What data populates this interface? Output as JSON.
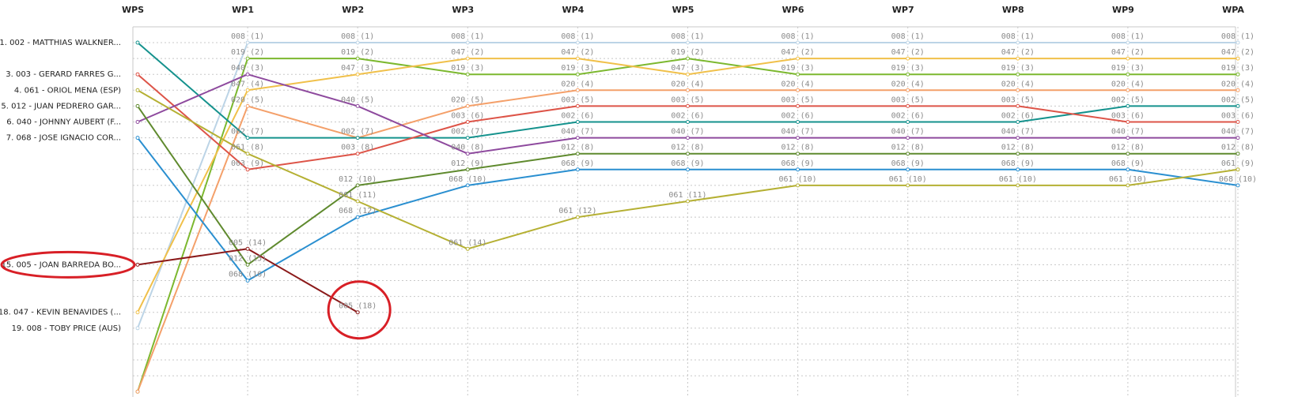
{
  "chart_data": {
    "type": "line",
    "x": [
      "WPS",
      "WP1",
      "WP2",
      "WP3",
      "WP4",
      "WP5",
      "WP6",
      "WP7",
      "WP8",
      "WP9",
      "WPA"
    ],
    "y_scale": "rank (1 at top)",
    "ylim": [
      1,
      22
    ],
    "grid": true,
    "rider_labels": [
      {
        "rank": 1,
        "text": "1. 002 - MATTHIAS WALKNER..."
      },
      {
        "rank": 3,
        "text": "3. 003 - GERARD FARRES G..."
      },
      {
        "rank": 4,
        "text": "4. 061 - ORIOL MENA (ESP)"
      },
      {
        "rank": 5,
        "text": "5. 012 - JUAN PEDRERO GAR..."
      },
      {
        "rank": 6,
        "text": "6. 040 - JOHNNY AUBERT (F..."
      },
      {
        "rank": 7,
        "text": "7. 068 - JOSE IGNACIO COR..."
      },
      {
        "rank": 15,
        "text": "15. 005 - JOAN BARREDA BO..."
      },
      {
        "rank": 18,
        "text": "18. 047 - KEVIN BENAVIDES (..."
      },
      {
        "rank": 19,
        "text": "19. 008 - TOBY PRICE (AUS)"
      }
    ],
    "series": [
      {
        "id": "008",
        "color": "#bcd4e6",
        "ranks": [
          19,
          1,
          1,
          1,
          1,
          1,
          1,
          1,
          1,
          1,
          1
        ]
      },
      {
        "id": "019",
        "color": "#7cb82f",
        "ranks": [
          23,
          2,
          2,
          3,
          3,
          2,
          3,
          3,
          3,
          3,
          3
        ]
      },
      {
        "id": "047",
        "color": "#f0c04a",
        "ranks": [
          18,
          4,
          3,
          2,
          2,
          3,
          2,
          2,
          2,
          2,
          2
        ]
      },
      {
        "id": "020",
        "color": "#f4a06a",
        "ranks": [
          23,
          5,
          7,
          5,
          4,
          4,
          4,
          4,
          4,
          4,
          4
        ]
      },
      {
        "id": "002",
        "color": "#15928d",
        "ranks": [
          1,
          7,
          7,
          7,
          6,
          6,
          6,
          6,
          6,
          5,
          5
        ]
      },
      {
        "id": "003",
        "color": "#dd5448",
        "ranks": [
          3,
          9,
          8,
          6,
          5,
          5,
          5,
          5,
          5,
          6,
          6
        ]
      },
      {
        "id": "040",
        "color": "#8e4a9e",
        "ranks": [
          6,
          3,
          5,
          8,
          7,
          7,
          7,
          7,
          7,
          7,
          7
        ]
      },
      {
        "id": "012",
        "color": "#5f8a2e",
        "ranks": [
          5,
          15,
          10,
          9,
          8,
          8,
          8,
          8,
          8,
          8,
          8
        ]
      },
      {
        "id": "068",
        "color": "#2a8fd0",
        "ranks": [
          7,
          16,
          12,
          10,
          9,
          9,
          9,
          9,
          9,
          9,
          10
        ]
      },
      {
        "id": "061",
        "color": "#b5b033",
        "ranks": [
          4,
          8,
          11,
          14,
          12,
          11,
          10,
          10,
          10,
          10,
          9
        ]
      },
      {
        "id": "005",
        "color": "#8b1a1a",
        "ranks": [
          15,
          14,
          18
        ]
      }
    ],
    "point_labels": [
      {
        "s": "008",
        "i": 1,
        "text": "008 (1)"
      },
      {
        "s": "008",
        "i": 2,
        "text": "008 (1)"
      },
      {
        "s": "008",
        "i": 3,
        "text": "008 (1)"
      },
      {
        "s": "008",
        "i": 4,
        "text": "008 (1)"
      },
      {
        "s": "008",
        "i": 5,
        "text": "008 (1)"
      },
      {
        "s": "008",
        "i": 6,
        "text": "008 (1)"
      },
      {
        "s": "008",
        "i": 7,
        "text": "008 (1)"
      },
      {
        "s": "008",
        "i": 8,
        "text": "008 (1)"
      },
      {
        "s": "008",
        "i": 9,
        "text": "008 (1)"
      },
      {
        "s": "008",
        "i": 10,
        "text": "008 (1)"
      },
      {
        "s": "019",
        "i": 1,
        "text": "019 (2)"
      },
      {
        "s": "019",
        "i": 2,
        "text": "019 (2)"
      },
      {
        "s": "019",
        "i": 3,
        "text": "019 (3)"
      },
      {
        "s": "019",
        "i": 4,
        "text": "019 (3)"
      },
      {
        "s": "019",
        "i": 5,
        "text": "019 (2)"
      },
      {
        "s": "019",
        "i": 6,
        "text": "019 (3)"
      },
      {
        "s": "019",
        "i": 7,
        "text": "019 (3)"
      },
      {
        "s": "019",
        "i": 8,
        "text": "019 (3)"
      },
      {
        "s": "019",
        "i": 9,
        "text": "019 (3)"
      },
      {
        "s": "019",
        "i": 10,
        "text": "019 (3)"
      },
      {
        "s": "047",
        "i": 1,
        "text": "047 (4)"
      },
      {
        "s": "047",
        "i": 2,
        "text": "047 (3)"
      },
      {
        "s": "047",
        "i": 3,
        "text": "047 (2)"
      },
      {
        "s": "047",
        "i": 4,
        "text": "047 (2)"
      },
      {
        "s": "047",
        "i": 5,
        "text": "047 (3)"
      },
      {
        "s": "047",
        "i": 6,
        "text": "047 (2)"
      },
      {
        "s": "047",
        "i": 7,
        "text": "047 (2)"
      },
      {
        "s": "047",
        "i": 8,
        "text": "047 (2)"
      },
      {
        "s": "047",
        "i": 9,
        "text": "047 (2)"
      },
      {
        "s": "047",
        "i": 10,
        "text": "047 (2)"
      },
      {
        "s": "020",
        "i": 1,
        "text": "020 (5)"
      },
      {
        "s": "020",
        "i": 3,
        "text": "020 (5)"
      },
      {
        "s": "020",
        "i": 4,
        "text": "020 (4)"
      },
      {
        "s": "020",
        "i": 5,
        "text": "020 (4)"
      },
      {
        "s": "020",
        "i": 6,
        "text": "020 (4)"
      },
      {
        "s": "020",
        "i": 7,
        "text": "020 (4)"
      },
      {
        "s": "020",
        "i": 8,
        "text": "020 (4)"
      },
      {
        "s": "020",
        "i": 9,
        "text": "020 (4)"
      },
      {
        "s": "020",
        "i": 10,
        "text": "020 (4)"
      },
      {
        "s": "002",
        "i": 1,
        "text": "002 (7)"
      },
      {
        "s": "002",
        "i": 2,
        "text": "002 (7)"
      },
      {
        "s": "002",
        "i": 3,
        "text": "002 (7)"
      },
      {
        "s": "002",
        "i": 4,
        "text": "002 (6)"
      },
      {
        "s": "002",
        "i": 5,
        "text": "002 (6)"
      },
      {
        "s": "002",
        "i": 6,
        "text": "002 (6)"
      },
      {
        "s": "002",
        "i": 7,
        "text": "002 (6)"
      },
      {
        "s": "002",
        "i": 8,
        "text": "002 (6)"
      },
      {
        "s": "002",
        "i": 9,
        "text": "002 (5)"
      },
      {
        "s": "002",
        "i": 10,
        "text": "002 (5)"
      },
      {
        "s": "003",
        "i": 1,
        "text": "003 (9)"
      },
      {
        "s": "003",
        "i": 2,
        "text": "003 (8)"
      },
      {
        "s": "003",
        "i": 3,
        "text": "003 (6)"
      },
      {
        "s": "003",
        "i": 4,
        "text": "003 (5)"
      },
      {
        "s": "003",
        "i": 5,
        "text": "003 (5)"
      },
      {
        "s": "003",
        "i": 6,
        "text": "003 (5)"
      },
      {
        "s": "003",
        "i": 7,
        "text": "003 (5)"
      },
      {
        "s": "003",
        "i": 8,
        "text": "003 (5)"
      },
      {
        "s": "003",
        "i": 9,
        "text": "003 (6)"
      },
      {
        "s": "003",
        "i": 10,
        "text": "003 (6)"
      },
      {
        "s": "040",
        "i": 1,
        "text": "040 (3)"
      },
      {
        "s": "040",
        "i": 2,
        "text": "040 (5)"
      },
      {
        "s": "040",
        "i": 3,
        "text": "040 (8)"
      },
      {
        "s": "040",
        "i": 4,
        "text": "040 (7)"
      },
      {
        "s": "040",
        "i": 5,
        "text": "040 (7)"
      },
      {
        "s": "040",
        "i": 6,
        "text": "040 (7)"
      },
      {
        "s": "040",
        "i": 7,
        "text": "040 (7)"
      },
      {
        "s": "040",
        "i": 8,
        "text": "040 (7)"
      },
      {
        "s": "040",
        "i": 9,
        "text": "040 (7)"
      },
      {
        "s": "040",
        "i": 10,
        "text": "040 (7)"
      },
      {
        "s": "012",
        "i": 1,
        "text": "012 (15)"
      },
      {
        "s": "012",
        "i": 2,
        "text": "012 (10)"
      },
      {
        "s": "012",
        "i": 3,
        "text": "012 (9)"
      },
      {
        "s": "012",
        "i": 4,
        "text": "012 (8)"
      },
      {
        "s": "012",
        "i": 5,
        "text": "012 (8)"
      },
      {
        "s": "012",
        "i": 6,
        "text": "012 (8)"
      },
      {
        "s": "012",
        "i": 7,
        "text": "012 (8)"
      },
      {
        "s": "012",
        "i": 8,
        "text": "012 (8)"
      },
      {
        "s": "012",
        "i": 9,
        "text": "012 (8)"
      },
      {
        "s": "012",
        "i": 10,
        "text": "012 (8)"
      },
      {
        "s": "068",
        "i": 1,
        "text": "068 (16)"
      },
      {
        "s": "068",
        "i": 2,
        "text": "068 (12)"
      },
      {
        "s": "068",
        "i": 3,
        "text": "068 (10)"
      },
      {
        "s": "068",
        "i": 4,
        "text": "068 (9)"
      },
      {
        "s": "068",
        "i": 5,
        "text": "068 (9)"
      },
      {
        "s": "068",
        "i": 6,
        "text": "068 (9)"
      },
      {
        "s": "068",
        "i": 7,
        "text": "068 (9)"
      },
      {
        "s": "068",
        "i": 8,
        "text": "068 (9)"
      },
      {
        "s": "068",
        "i": 9,
        "text": "068 (9)"
      },
      {
        "s": "068",
        "i": 10,
        "text": "068 (10)"
      },
      {
        "s": "061",
        "i": 1,
        "text": "061 (8)"
      },
      {
        "s": "061",
        "i": 2,
        "text": "061 (11)"
      },
      {
        "s": "061",
        "i": 3,
        "text": "061 (14)"
      },
      {
        "s": "061",
        "i": 4,
        "text": "061 (12)"
      },
      {
        "s": "061",
        "i": 5,
        "text": "061 (11)"
      },
      {
        "s": "061",
        "i": 6,
        "text": "061 (10)"
      },
      {
        "s": "061",
        "i": 7,
        "text": "061 (10)"
      },
      {
        "s": "061",
        "i": 8,
        "text": "061 (10)"
      },
      {
        "s": "061",
        "i": 9,
        "text": "061 (10)"
      },
      {
        "s": "061",
        "i": 10,
        "text": "061 (9)"
      },
      {
        "s": "005",
        "i": 1,
        "text": "005 (14)"
      },
      {
        "s": "005",
        "i": 2,
        "text": "005 (18)"
      }
    ],
    "highlights": [
      {
        "series": "005",
        "x_index": 0,
        "label": "15. 005 - JOAN BARREDA BO..."
      },
      {
        "series": "005",
        "x_index": 2,
        "label": "005 (18)"
      }
    ],
    "highlight_color": "#d81f26"
  }
}
